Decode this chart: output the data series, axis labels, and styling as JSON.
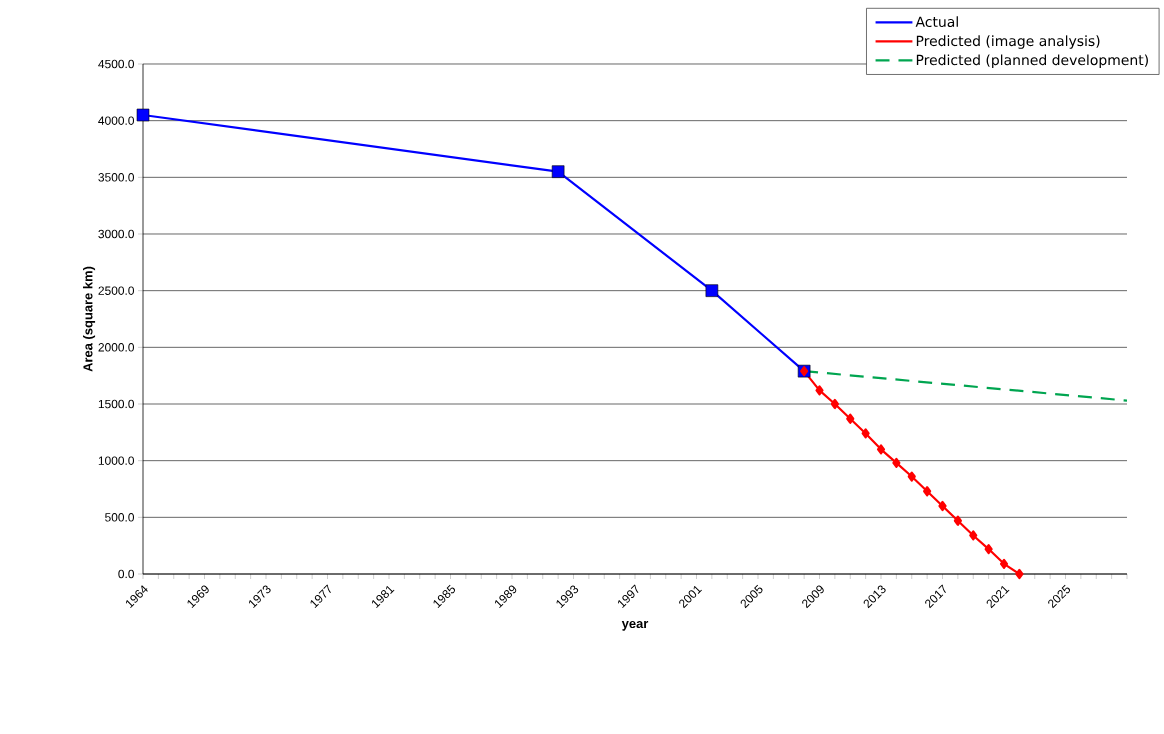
{
  "chart_data": {
    "type": "line",
    "xlabel": "year",
    "ylabel": "Area (square km)",
    "categories": [
      "1964",
      null,
      null,
      null,
      "1969",
      null,
      null,
      null,
      "1973",
      null,
      null,
      null,
      "1977",
      null,
      null,
      null,
      "1981",
      null,
      null,
      null,
      "1985",
      null,
      null,
      null,
      "1989",
      null,
      null,
      null,
      "1993",
      null,
      null,
      null,
      "1997",
      null,
      null,
      null,
      "2001",
      null,
      null,
      null,
      "2005",
      null,
      null,
      null,
      "2009",
      null,
      null,
      null,
      "2013",
      null,
      null,
      null,
      "2017",
      null,
      null,
      null,
      "2021",
      null,
      null,
      null,
      "2025",
      null,
      null,
      null,
      null
    ],
    "series": [
      {
        "name": "Actual",
        "color": "#0000ff",
        "marker": "square",
        "line_style": "solid",
        "values": [
          4050,
          null,
          null,
          null,
          null,
          null,
          null,
          null,
          null,
          null,
          null,
          null,
          null,
          null,
          null,
          null,
          null,
          null,
          null,
          null,
          null,
          null,
          null,
          null,
          null,
          null,
          null,
          3550,
          null,
          null,
          null,
          null,
          null,
          null,
          null,
          null,
          null,
          2500,
          null,
          null,
          null,
          null,
          null,
          1790,
          null,
          null,
          null,
          null,
          null,
          null,
          null,
          null,
          null,
          null,
          null,
          null,
          null,
          null,
          null,
          null,
          null,
          null,
          null,
          null,
          null
        ]
      },
      {
        "name": "Predicted (image analysis)",
        "color": "#ff0000",
        "marker": "diamond",
        "line_style": "solid",
        "values": [
          null,
          null,
          null,
          null,
          null,
          null,
          null,
          null,
          null,
          null,
          null,
          null,
          null,
          null,
          null,
          null,
          null,
          null,
          null,
          null,
          null,
          null,
          null,
          null,
          null,
          null,
          null,
          null,
          null,
          null,
          null,
          null,
          null,
          null,
          null,
          null,
          null,
          null,
          null,
          null,
          null,
          null,
          null,
          1790,
          1620,
          1500,
          1370,
          1240,
          1100,
          980,
          860,
          730,
          600,
          470,
          340,
          220,
          90,
          0,
          null,
          null,
          null,
          null,
          null,
          null,
          null
        ]
      },
      {
        "name": "Predicted (planned development)",
        "color": "#00a550",
        "marker": "none",
        "line_style": "dashed",
        "values": [
          null,
          null,
          null,
          null,
          null,
          null,
          null,
          null,
          null,
          null,
          null,
          null,
          null,
          null,
          null,
          null,
          null,
          null,
          null,
          null,
          null,
          null,
          null,
          null,
          null,
          null,
          null,
          null,
          null,
          null,
          null,
          null,
          null,
          null,
          null,
          null,
          null,
          null,
          null,
          null,
          null,
          null,
          null,
          1790,
          null,
          null,
          null,
          null,
          null,
          null,
          null,
          null,
          null,
          null,
          null,
          null,
          null,
          null,
          null,
          null,
          null,
          null,
          null,
          null,
          1530
        ]
      }
    ],
    "ylim": [
      0,
      4500
    ],
    "yticks": [
      {
        "value": 0,
        "label": "0.0"
      },
      {
        "value": 500,
        "label": "500.0"
      },
      {
        "value": 1000,
        "label": "1000.0"
      },
      {
        "value": 1500,
        "label": "1500.0"
      },
      {
        "value": 2000,
        "label": "2000.0"
      },
      {
        "value": 2500,
        "label": "2500.0"
      },
      {
        "value": 3000,
        "label": "3000.0"
      },
      {
        "value": 3500,
        "label": "3500.0"
      },
      {
        "value": 4000,
        "label": "4000.0"
      },
      {
        "value": 4500,
        "label": "4500.0"
      }
    ],
    "grid": "y",
    "legend": "top right"
  }
}
